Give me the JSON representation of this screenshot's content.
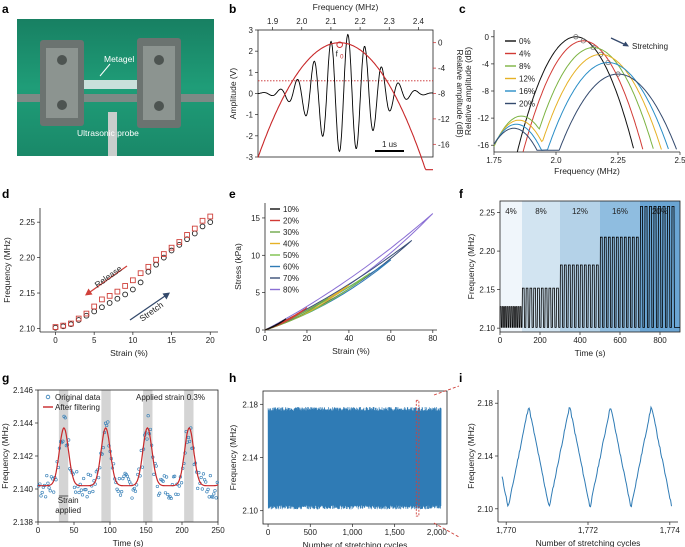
{
  "panel_letters": [
    "a",
    "b",
    "c",
    "d",
    "e",
    "f",
    "g",
    "h",
    "i"
  ],
  "colors": {
    "black": "#000000",
    "red": "#c8282a",
    "blue": "#2f7bb5",
    "navy": "#33496b",
    "photo_bg": "#22a37f"
  },
  "photo": {
    "label_metagel": "Metagel",
    "label_probe": "Ultrasonic probe"
  },
  "chart_data": [
    {
      "panel": "b",
      "type": "line",
      "title": "",
      "xlabel": "",
      "ylabel": "Amplitude (V)",
      "top_xlabel": "Frequency (MHz)",
      "right_ylabel": "Relative amplitude (dB)",
      "ylim": [
        -3,
        3
      ],
      "yticks": [
        "3",
        "2",
        "1",
        "0",
        "-1",
        "-2",
        "-3"
      ],
      "top_xlim": [
        1.85,
        2.45
      ],
      "top_xticks": [
        "1.9",
        "2.0",
        "2.1",
        "2.2",
        "2.3",
        "2.4"
      ],
      "right_ylim": [
        -18,
        2
      ],
      "right_yticks": [
        "0",
        "-4",
        "-8",
        "-12",
        "-16"
      ],
      "annotation_f0": "f",
      "annotation_f0_sub": "0",
      "scale_bar": "1 us",
      "series": [
        {
          "name": "waveform",
          "color": "#000000",
          "amplitude": 2.8,
          "cycles": 9
        },
        {
          "name": "spectrum",
          "color": "#c8282a",
          "center_freq": 2.13,
          "peak_db": 0,
          "threshold_db": -6
        }
      ]
    },
    {
      "panel": "c",
      "type": "line",
      "xlabel": "Frequency (MHz)",
      "ylabel": "Relative amplitude (dB)",
      "xlim": [
        1.75,
        2.5
      ],
      "ylim": [
        -17,
        1
      ],
      "xticks": [
        "1.75",
        "2.0",
        "2.25",
        "2.5"
      ],
      "yticks": [
        "0",
        "-4",
        "-8",
        "-12",
        "-16"
      ],
      "annotation": "Stretching",
      "series": [
        {
          "name": "0%",
          "color": "#111111",
          "peak_f": 2.08,
          "peak_db": 0
        },
        {
          "name": "4%",
          "color": "#d23a35",
          "peak_f": 2.11,
          "peak_db": -0.6
        },
        {
          "name": "8%",
          "color": "#7cb342",
          "peak_f": 2.15,
          "peak_db": -1.6
        },
        {
          "name": "12%",
          "color": "#e6b125",
          "peak_f": 2.18,
          "peak_db": -2.6
        },
        {
          "name": "16%",
          "color": "#2a8ec7",
          "peak_f": 2.21,
          "peak_db": -3.8
        },
        {
          "name": "20%",
          "color": "#344a6e",
          "peak_f": 2.25,
          "peak_db": -5.5
        }
      ]
    },
    {
      "panel": "d",
      "type": "scatter",
      "xlabel": "Strain (%)",
      "ylabel": "Frequency (MHz)",
      "xlim": [
        -2,
        21
      ],
      "ylim": [
        2.095,
        2.27
      ],
      "xticks": [
        "0",
        "5",
        "10",
        "15",
        "20"
      ],
      "yticks": [
        "2.10",
        "2.15",
        "2.20",
        "2.25"
      ],
      "label_release": "Release",
      "label_stretch": "Stretch",
      "x": [
        0,
        1,
        2,
        3,
        4,
        5,
        6,
        7,
        8,
        9,
        10,
        11,
        12,
        13,
        14,
        15,
        16,
        17,
        18,
        19,
        20
      ],
      "series": [
        {
          "name": "Stretch",
          "color": "#222222",
          "values": [
            2.101,
            2.103,
            2.106,
            2.112,
            2.118,
            2.124,
            2.13,
            2.136,
            2.142,
            2.148,
            2.155,
            2.165,
            2.18,
            2.19,
            2.2,
            2.21,
            2.218,
            2.226,
            2.234,
            2.244,
            2.25
          ]
        },
        {
          "name": "Release",
          "color": "#d0413b",
          "values": [
            2.102,
            2.104,
            2.107,
            2.114,
            2.121,
            2.131,
            2.141,
            2.146,
            2.152,
            2.16,
            2.168,
            2.178,
            2.187,
            2.197,
            2.205,
            2.214,
            2.222,
            2.232,
            2.241,
            2.252,
            2.258
          ]
        }
      ]
    },
    {
      "panel": "e",
      "type": "line",
      "xlabel": "Strain (%)",
      "ylabel": "Stress (kPa)",
      "xlim": [
        0,
        82
      ],
      "ylim": [
        0,
        17
      ],
      "xticks": [
        "0",
        "20",
        "40",
        "60",
        "80"
      ],
      "yticks": [
        "0",
        "5",
        "10",
        "15"
      ],
      "series": [
        {
          "name": "10%",
          "color": "#111111",
          "max_strain": 10,
          "max_stress": 1.5
        },
        {
          "name": "20%",
          "color": "#d23a35",
          "max_strain": 20,
          "max_stress": 3.0
        },
        {
          "name": "30%",
          "color": "#6fa84a",
          "max_strain": 30,
          "max_stress": 4.3
        },
        {
          "name": "40%",
          "color": "#e6b125",
          "max_strain": 40,
          "max_stress": 6.0
        },
        {
          "name": "50%",
          "color": "#7bc04b",
          "max_strain": 50,
          "max_stress": 7.6
        },
        {
          "name": "60%",
          "color": "#2f7bb5",
          "max_strain": 60,
          "max_stress": 9.4
        },
        {
          "name": "70%",
          "color": "#3a4f78",
          "max_strain": 70,
          "max_stress": 12.0
        },
        {
          "name": "80%",
          "color": "#8a6fd4",
          "max_strain": 80,
          "max_stress": 15.6
        }
      ]
    },
    {
      "panel": "f",
      "type": "line",
      "xlabel": "Time (s)",
      "ylabel": "Frequency (MHz)",
      "xlim": [
        0,
        900
      ],
      "ylim": [
        2.095,
        2.265
      ],
      "xticks": [
        "0",
        "200",
        "400",
        "600",
        "800"
      ],
      "yticks": [
        "2.10",
        "2.15",
        "2.20",
        "2.25"
      ],
      "base_value": 2.101,
      "segments": [
        {
          "label": "4%",
          "start": 0,
          "end": 110,
          "peak": 2.128,
          "cycles": 10
        },
        {
          "label": "8%",
          "start": 110,
          "end": 300,
          "peak": 2.152,
          "cycles": 10
        },
        {
          "label": "12%",
          "start": 300,
          "end": 500,
          "peak": 2.182,
          "cycles": 10
        },
        {
          "label": "16%",
          "start": 500,
          "end": 700,
          "peak": 2.218,
          "cycles": 10
        },
        {
          "label": "20%",
          "start": 700,
          "end": 880,
          "peak": 2.258,
          "cycles": 8
        }
      ]
    },
    {
      "panel": "g",
      "type": "scatter",
      "xlabel": "Time (s)",
      "ylabel": "Frequency (MHz)",
      "xlim": [
        0,
        250
      ],
      "ylim": [
        2.138,
        2.146
      ],
      "xticks": [
        "0",
        "50",
        "100",
        "150",
        "200",
        "250"
      ],
      "yticks": [
        "2.138",
        "2.140",
        "2.142",
        "2.144",
        "2.146"
      ],
      "legend": [
        "Original data",
        "After filtering"
      ],
      "annotation": "Applied strain 0.3%",
      "label_strain_1": "Strain",
      "label_strain_2": "applied",
      "strain_windows": [
        [
          29,
          42
        ],
        [
          88,
          101
        ],
        [
          146,
          159
        ],
        [
          203,
          216
        ]
      ],
      "baseline": 2.1402,
      "peak": 2.1437,
      "period": 58,
      "phase": 36,
      "series": [
        {
          "name": "Original data",
          "color": "#2f7bb5"
        },
        {
          "name": "After filtering",
          "color": "#c8282a"
        }
      ]
    },
    {
      "panel": "h",
      "type": "line",
      "xlabel": "Number of stretching cycles",
      "ylabel": "Frequency (MHz)",
      "xlim": [
        -60,
        2120
      ],
      "ylim": [
        2.09,
        2.19
      ],
      "xticks": [
        "0",
        "500",
        "1,000",
        "1,500",
        "2,000"
      ],
      "yticks": [
        "2.10",
        "2.14",
        "2.18"
      ],
      "band": [
        2.101,
        2.178
      ],
      "highlight": [
        1768,
        1775
      ],
      "series": [
        {
          "name": "Frequency",
          "color": "#2f7bb5"
        }
      ]
    },
    {
      "panel": "i",
      "type": "line",
      "xlabel": "Number of stretching cycles",
      "ylabel": "Frequency (MHz)",
      "xlim": [
        1769.8,
        1774.2
      ],
      "ylim": [
        2.09,
        2.19
      ],
      "xticks": [
        "1,770",
        "1,772",
        "1,774"
      ],
      "yticks": [
        "2.10",
        "2.14",
        "2.18"
      ],
      "min": 2.101,
      "max": 2.178,
      "first_peak": 1770.55,
      "series": [
        {
          "name": "Frequency",
          "color": "#2f7bb5"
        }
      ]
    }
  ]
}
